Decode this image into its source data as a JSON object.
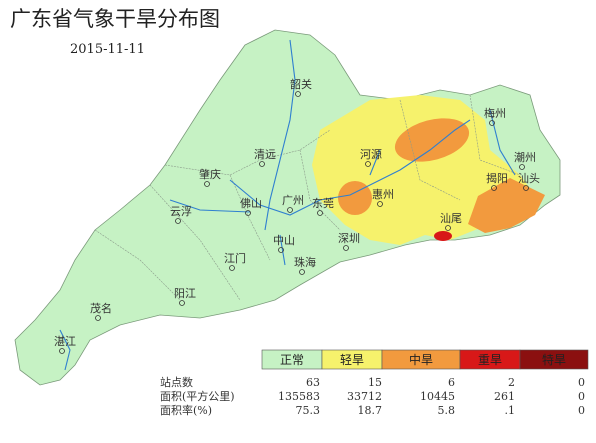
{
  "header": {
    "title": "广东省气象干旱分布图",
    "date": "2015-11-11"
  },
  "cities": [
    "韶关",
    "清远",
    "河源",
    "梅州",
    "潮州",
    "揭阳",
    "汕头",
    "肇庆",
    "广州",
    "惠州",
    "云浮",
    "佛山",
    "东莞",
    "深圳",
    "中山",
    "江门",
    "珠海",
    "汕尾",
    "阳江",
    "茂名",
    "湛江"
  ],
  "legend": [
    "正常",
    "轻旱",
    "中旱",
    "重旱",
    "特旱"
  ],
  "table": {
    "rows": [
      [
        "站点数",
        "63",
        "15",
        "6",
        "2",
        "0"
      ],
      [
        "面积(平方公里)",
        "135583",
        "33712",
        "10445",
        "261",
        "0"
      ],
      [
        "面积率(%)",
        "75.3",
        "18.7",
        "5.8",
        ".1",
        "0"
      ]
    ]
  }
}
